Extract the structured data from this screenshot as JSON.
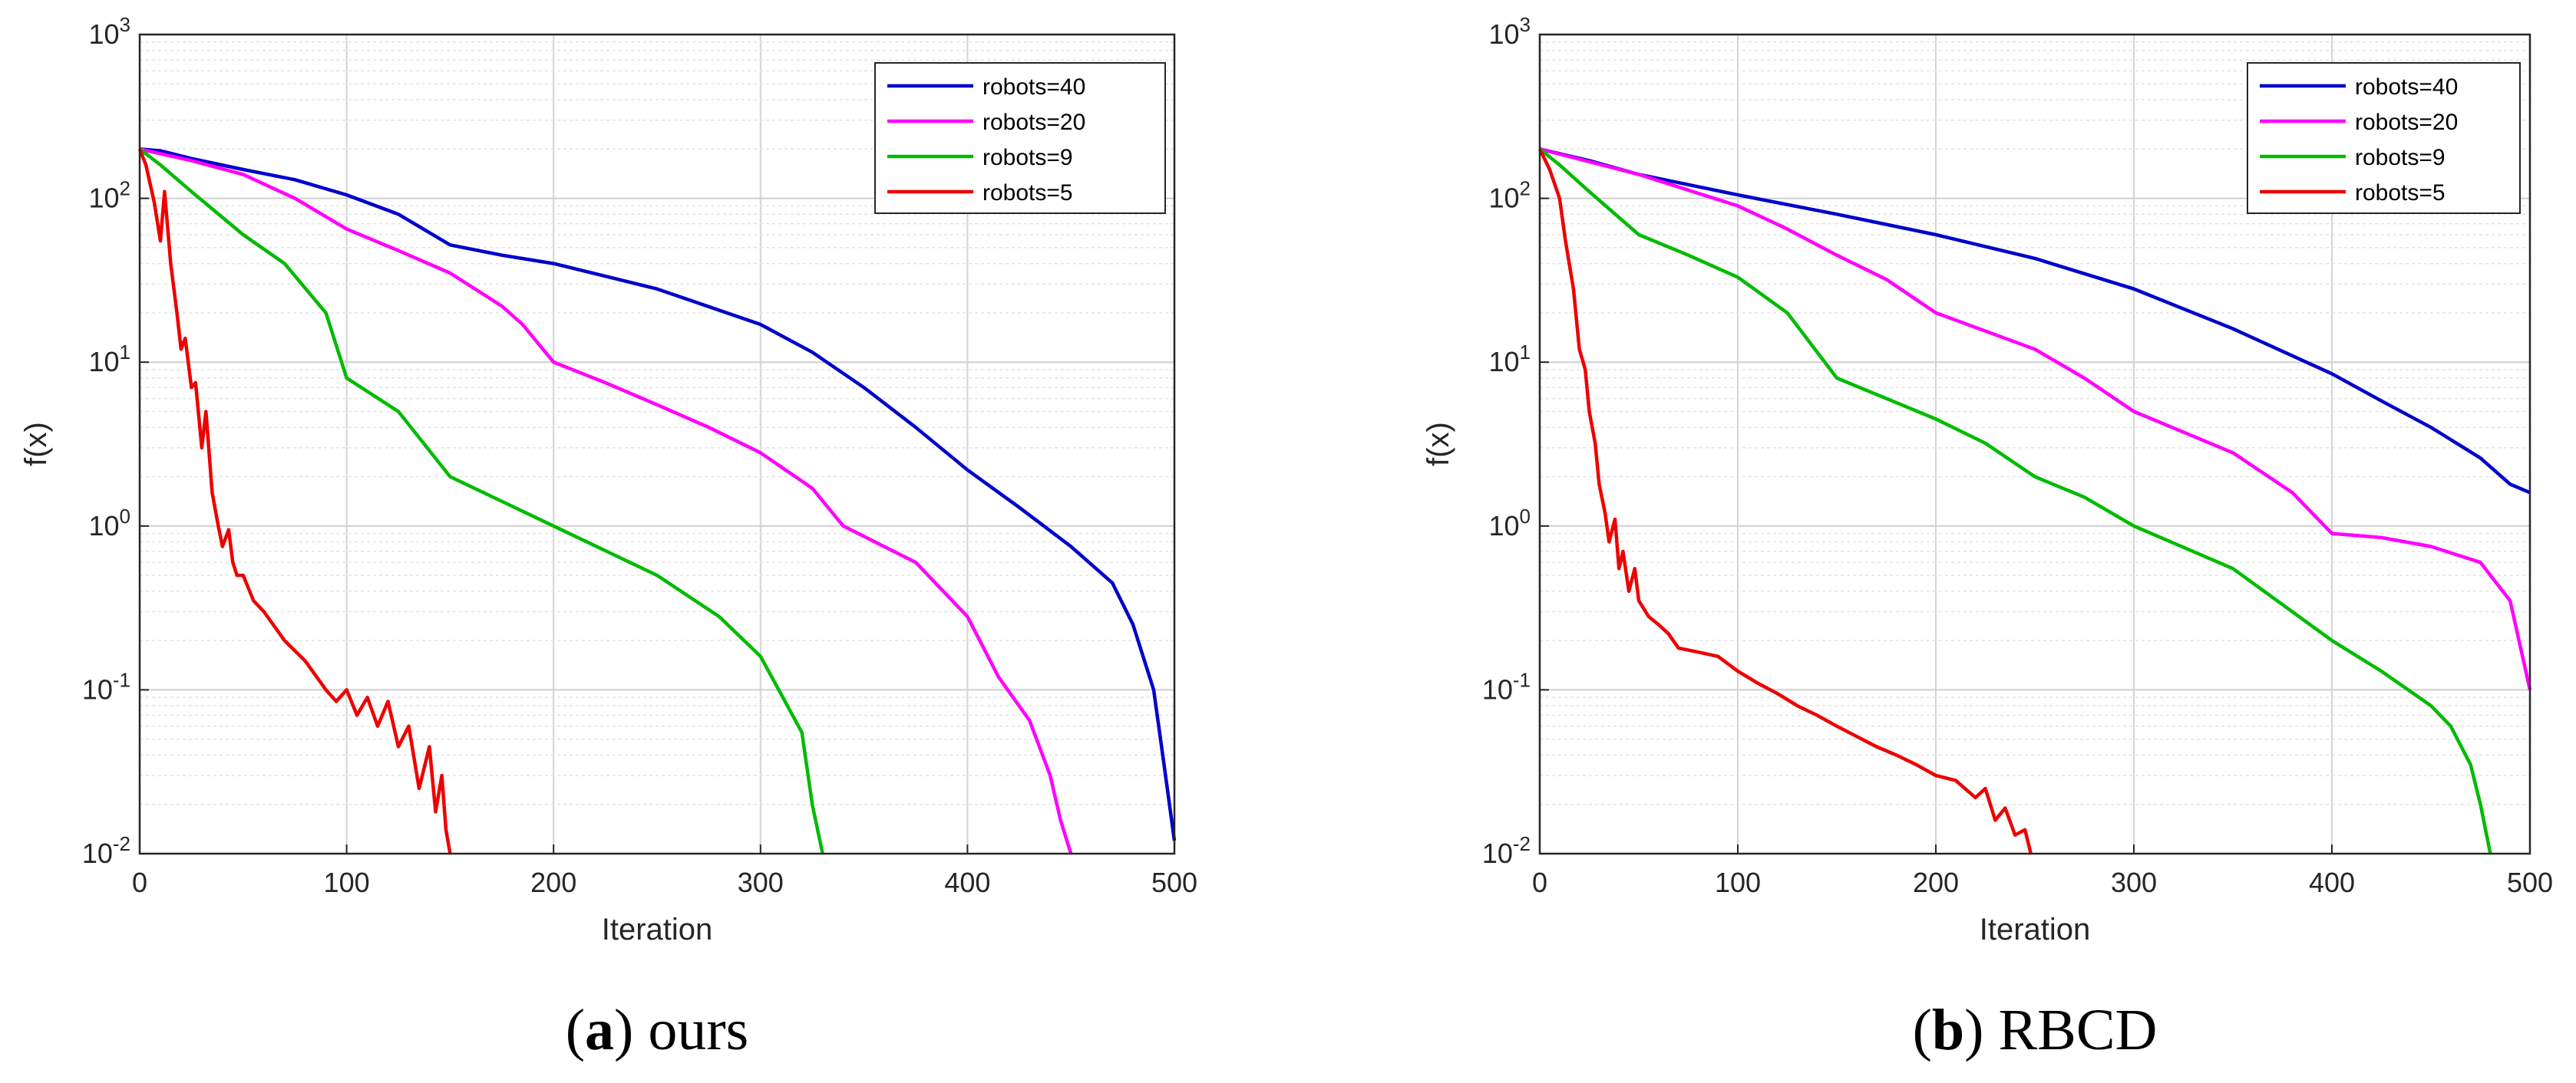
{
  "chart_data": [
    {
      "type": "line",
      "caption": {
        "letter": "a",
        "text": "ours"
      },
      "xlabel": "Iteration",
      "ylabel": "f(x)",
      "xlim": [
        0,
        500
      ],
      "ylim": [
        0.01,
        1000
      ],
      "yscale": "log",
      "grid": true,
      "legend_position": "top-right",
      "xticks": [
        "0",
        "100",
        "200",
        "300",
        "400",
        "500"
      ],
      "yticks": [
        {
          "base": "10",
          "exp": "-2"
        },
        {
          "base": "10",
          "exp": "-1"
        },
        {
          "base": "10",
          "exp": "0"
        },
        {
          "base": "10",
          "exp": "1"
        },
        {
          "base": "10",
          "exp": "2"
        },
        {
          "base": "10",
          "exp": "3"
        }
      ],
      "series": [
        {
          "name": "robots=40",
          "color": "#0000cc",
          "x": [
            0,
            10,
            25,
            50,
            75,
            100,
            125,
            150,
            175,
            200,
            250,
            300,
            325,
            350,
            375,
            400,
            425,
            450,
            470,
            480,
            490,
            495,
            500
          ],
          "y": [
            200,
            195,
            175,
            150,
            130,
            105,
            80,
            52,
            45,
            40,
            28,
            17,
            11.5,
            7,
            4,
            2.2,
            1.3,
            0.75,
            0.45,
            0.25,
            0.1,
            0.035,
            0.012
          ]
        },
        {
          "name": "robots=20",
          "color": "#ff00ff",
          "x": [
            0,
            25,
            50,
            75,
            100,
            125,
            150,
            175,
            185,
            200,
            225,
            250,
            275,
            300,
            325,
            340,
            375,
            400,
            415,
            430,
            440,
            445,
            450
          ],
          "y": [
            200,
            170,
            140,
            100,
            65,
            48,
            35,
            22,
            17,
            10,
            7.5,
            5.5,
            4,
            2.8,
            1.7,
            1.0,
            0.6,
            0.28,
            0.12,
            0.065,
            0.03,
            0.016,
            0.01
          ]
        },
        {
          "name": "robots=9",
          "color": "#00bb00",
          "x": [
            0,
            10,
            25,
            50,
            70,
            90,
            100,
            125,
            150,
            200,
            250,
            280,
            300,
            320,
            325,
            330
          ],
          "y": [
            200,
            160,
            110,
            60,
            40,
            20,
            8,
            5,
            2,
            1,
            0.5,
            0.28,
            0.16,
            0.055,
            0.02,
            0.01
          ]
        },
        {
          "name": "robots=5",
          "color": "#ee0000",
          "x": [
            0,
            3,
            7,
            10,
            12,
            15,
            18,
            20,
            22,
            25,
            27,
            30,
            32,
            35,
            38,
            40,
            43,
            45,
            47,
            50,
            55,
            60,
            70,
            80,
            90,
            95,
            100,
            105,
            110,
            115,
            120,
            125,
            130,
            135,
            140,
            143,
            146,
            148,
            150
          ],
          "y": [
            200,
            160,
            95,
            55,
            110,
            40,
            20,
            12,
            14,
            7,
            7.5,
            3,
            5,
            1.6,
            1.0,
            0.75,
            0.95,
            0.6,
            0.5,
            0.5,
            0.35,
            0.3,
            0.2,
            0.15,
            0.1,
            0.085,
            0.1,
            0.07,
            0.09,
            0.06,
            0.085,
            0.045,
            0.06,
            0.025,
            0.045,
            0.018,
            0.03,
            0.014,
            0.01
          ]
        }
      ]
    },
    {
      "type": "line",
      "caption": {
        "letter": "b",
        "text": "RBCD"
      },
      "xlabel": "Iteration",
      "ylabel": "f(x)",
      "xlim": [
        0,
        500
      ],
      "ylim": [
        0.01,
        1000
      ],
      "yscale": "log",
      "grid": true,
      "legend_position": "top-right",
      "xticks": [
        "0",
        "100",
        "200",
        "300",
        "400",
        "500"
      ],
      "yticks": [
        {
          "base": "10",
          "exp": "-2"
        },
        {
          "base": "10",
          "exp": "-1"
        },
        {
          "base": "10",
          "exp": "0"
        },
        {
          "base": "10",
          "exp": "1"
        },
        {
          "base": "10",
          "exp": "2"
        },
        {
          "base": "10",
          "exp": "3"
        }
      ],
      "series": [
        {
          "name": "robots=40",
          "color": "#0000cc",
          "x": [
            0,
            25,
            50,
            100,
            150,
            200,
            250,
            300,
            350,
            400,
            425,
            450,
            475,
            490,
            500
          ],
          "y": [
            200,
            170,
            140,
            105,
            80,
            60,
            43,
            28,
            16,
            8.5,
            5.8,
            4,
            2.6,
            1.8,
            1.6
          ]
        },
        {
          "name": "robots=20",
          "color": "#ff00ff",
          "x": [
            0,
            50,
            100,
            125,
            150,
            175,
            200,
            250,
            275,
            300,
            350,
            380,
            400,
            425,
            450,
            475,
            490,
            500
          ],
          "y": [
            200,
            140,
            90,
            65,
            45,
            32,
            20,
            12,
            8,
            5,
            2.8,
            1.6,
            0.9,
            0.85,
            0.75,
            0.6,
            0.35,
            0.1
          ]
        },
        {
          "name": "robots=9",
          "color": "#00bb00",
          "x": [
            0,
            10,
            25,
            50,
            75,
            100,
            125,
            150,
            175,
            200,
            225,
            250,
            275,
            300,
            350,
            400,
            425,
            450,
            460,
            470,
            475,
            480
          ],
          "y": [
            200,
            160,
            110,
            60,
            45,
            33,
            20,
            8,
            6,
            4.5,
            3.2,
            2,
            1.5,
            1,
            0.55,
            0.2,
            0.13,
            0.08,
            0.06,
            0.035,
            0.02,
            0.01
          ]
        },
        {
          "name": "robots=5",
          "color": "#ee0000",
          "x": [
            0,
            5,
            10,
            13,
            17,
            20,
            23,
            25,
            28,
            30,
            33,
            35,
            38,
            40,
            42,
            45,
            48,
            50,
            55,
            60,
            65,
            70,
            80,
            90,
            100,
            110,
            120,
            130,
            140,
            150,
            160,
            170,
            180,
            190,
            200,
            210,
            220,
            225,
            230,
            235,
            240,
            245,
            248
          ],
          "y": [
            200,
            150,
            100,
            55,
            28,
            12,
            9,
            5,
            3.2,
            1.8,
            1.2,
            0.8,
            1.1,
            0.55,
            0.7,
            0.4,
            0.55,
            0.35,
            0.28,
            0.25,
            0.22,
            0.18,
            0.17,
            0.16,
            0.13,
            0.11,
            0.095,
            0.08,
            0.07,
            0.06,
            0.052,
            0.045,
            0.04,
            0.035,
            0.03,
            0.028,
            0.022,
            0.025,
            0.016,
            0.019,
            0.013,
            0.014,
            0.01
          ]
        }
      ]
    }
  ]
}
